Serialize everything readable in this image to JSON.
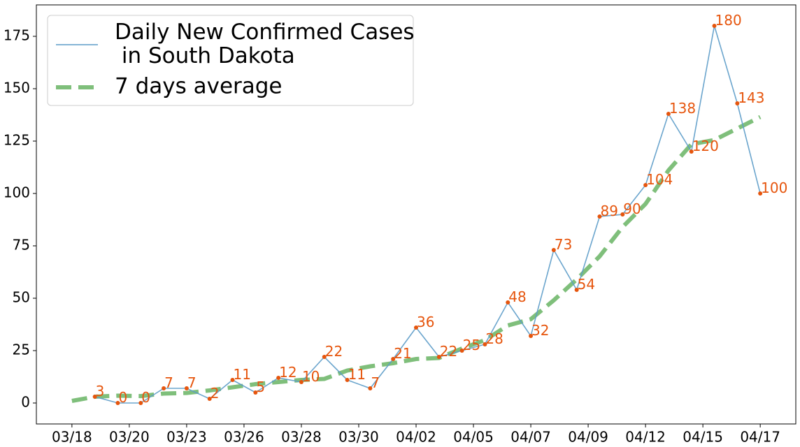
{
  "chart_data": {
    "type": "line",
    "x": [
      0,
      1,
      2,
      3,
      4,
      5,
      6,
      7,
      8,
      9,
      10,
      11,
      12,
      13,
      14,
      15,
      16,
      17,
      18,
      19,
      20,
      21,
      22,
      23,
      24,
      25,
      26,
      27,
      28,
      29,
      30
    ],
    "series": [
      {
        "name": "Daily New Confirmed Cases\n in South Dakota",
        "color": "#5b9bc8",
        "marker_color": "#e6550d",
        "label_color": "#e6550d",
        "width": 1.6,
        "dashed": false,
        "values": [
          null,
          3,
          0,
          0,
          7,
          7,
          2,
          11,
          5,
          12,
          10,
          22,
          11,
          7,
          21,
          36,
          22,
          25,
          28,
          48,
          32,
          73,
          54,
          89,
          90,
          104,
          138,
          120,
          180,
          143,
          100
        ]
      },
      {
        "name": "7 days average",
        "color": "#7fbf7b",
        "width": 6,
        "dashed": true,
        "values": [
          1,
          3,
          3.5,
          3.3,
          4.5,
          4.8,
          6,
          7.5,
          9,
          10,
          11,
          11.5,
          15.5,
          17.5,
          19,
          21,
          21.5,
          26,
          30,
          37,
          40,
          49,
          59,
          70,
          84,
          95,
          111,
          123.5,
          125.5,
          131,
          136.5
        ]
      }
    ],
    "xlim": [
      -1.55,
      31.55
    ],
    "xticks": [
      {
        "value": 0,
        "label": "03/18"
      },
      {
        "value": 2.5,
        "label": "03/20"
      },
      {
        "value": 5,
        "label": "03/23"
      },
      {
        "value": 7.5,
        "label": "03/26"
      },
      {
        "value": 10,
        "label": "03/28"
      },
      {
        "value": 12.5,
        "label": "03/30"
      },
      {
        "value": 15,
        "label": "04/02"
      },
      {
        "value": 17.5,
        "label": "04/05"
      },
      {
        "value": 20,
        "label": "04/07"
      },
      {
        "value": 22.5,
        "label": "04/09"
      },
      {
        "value": 25,
        "label": "04/12"
      },
      {
        "value": 27.5,
        "label": "04/15"
      },
      {
        "value": 30,
        "label": "04/17"
      }
    ],
    "ylim": [
      -10,
      190
    ],
    "yticks": [
      0,
      25,
      50,
      75,
      100,
      125,
      150,
      175
    ],
    "legend": "upper left"
  }
}
